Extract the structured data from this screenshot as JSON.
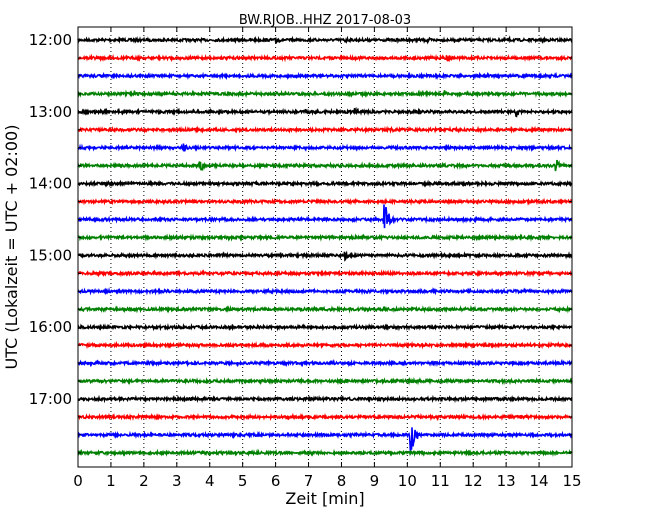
{
  "chart_data": {
    "type": "line",
    "title": "BW.RJOB..HHZ 2017-08-03",
    "xlabel": "Zeit  [min]",
    "ylabel": "UTC (Lokalzeit = UTC + 02:00)",
    "xlim": [
      0,
      15
    ],
    "x_ticks": [
      "0",
      "1",
      "2",
      "3",
      "4",
      "5",
      "6",
      "7",
      "8",
      "9",
      "10",
      "11",
      "12",
      "13",
      "14",
      "15"
    ],
    "y_ticks": [
      "12:00",
      "13:00",
      "14:00",
      "15:00",
      "16:00",
      "17:00"
    ],
    "grid": "vertical dotted",
    "trace_interval_min": 15,
    "color_cycle": [
      "#000000",
      "#ff0000",
      "#0000ff",
      "#008000"
    ],
    "traces": [
      {
        "start": "12:00",
        "color": "#000000",
        "events": [
          {
            "t": 6.0,
            "amp": 0.25
          },
          {
            "t": 8.1,
            "amp": 0.2
          },
          {
            "t": 10.6,
            "amp": 0.18
          },
          {
            "t": 13.1,
            "amp": 0.12
          }
        ]
      },
      {
        "start": "12:15",
        "color": "#ff0000",
        "events": [
          {
            "t": 11.2,
            "amp": 0.3
          }
        ]
      },
      {
        "start": "12:30",
        "color": "#0000ff",
        "events": []
      },
      {
        "start": "12:45",
        "color": "#008000",
        "events": [
          {
            "t": 11.1,
            "amp": 0.25
          }
        ]
      },
      {
        "start": "13:00",
        "color": "#000000",
        "events": [
          {
            "t": 6.9,
            "amp": 0.25
          },
          {
            "t": 8.4,
            "amp": 0.2
          },
          {
            "t": 13.3,
            "amp": 0.3
          }
        ]
      },
      {
        "start": "13:15",
        "color": "#ff0000",
        "events": [
          {
            "t": 9.5,
            "amp": 0.15
          }
        ]
      },
      {
        "start": "13:30",
        "color": "#0000ff",
        "events": [
          {
            "t": 3.2,
            "amp": 0.25
          }
        ]
      },
      {
        "start": "13:45",
        "color": "#008000",
        "events": [
          {
            "t": 3.7,
            "amp": 0.45
          },
          {
            "t": 6.6,
            "amp": 0.15
          },
          {
            "t": 14.5,
            "amp": 0.45
          }
        ]
      },
      {
        "start": "14:00",
        "color": "#000000",
        "events": []
      },
      {
        "start": "14:15",
        "color": "#ff0000",
        "events": [
          {
            "t": 12.1,
            "amp": 0.15
          }
        ]
      },
      {
        "start": "14:30",
        "color": "#0000ff",
        "events": [
          {
            "t": 9.3,
            "amp": 1.3
          }
        ]
      },
      {
        "start": "14:45",
        "color": "#008000",
        "events": []
      },
      {
        "start": "15:00",
        "color": "#000000",
        "events": [
          {
            "t": 8.1,
            "amp": 0.3
          }
        ]
      },
      {
        "start": "15:15",
        "color": "#ff0000",
        "events": [
          {
            "t": 4.6,
            "amp": 0.12
          }
        ]
      },
      {
        "start": "15:30",
        "color": "#0000ff",
        "events": []
      },
      {
        "start": "15:45",
        "color": "#008000",
        "events": []
      },
      {
        "start": "16:00",
        "color": "#000000",
        "events": []
      },
      {
        "start": "16:15",
        "color": "#ff0000",
        "events": []
      },
      {
        "start": "16:30",
        "color": "#0000ff",
        "events": [
          {
            "t": 8.2,
            "amp": 0.15
          }
        ]
      },
      {
        "start": "16:45",
        "color": "#008000",
        "events": []
      },
      {
        "start": "17:00",
        "color": "#000000",
        "events": []
      },
      {
        "start": "17:15",
        "color": "#ff0000",
        "events": []
      },
      {
        "start": "17:30",
        "color": "#0000ff",
        "events": [
          {
            "t": 10.1,
            "amp": 1.4
          }
        ]
      },
      {
        "start": "17:45",
        "color": "#008000",
        "events": []
      }
    ]
  }
}
